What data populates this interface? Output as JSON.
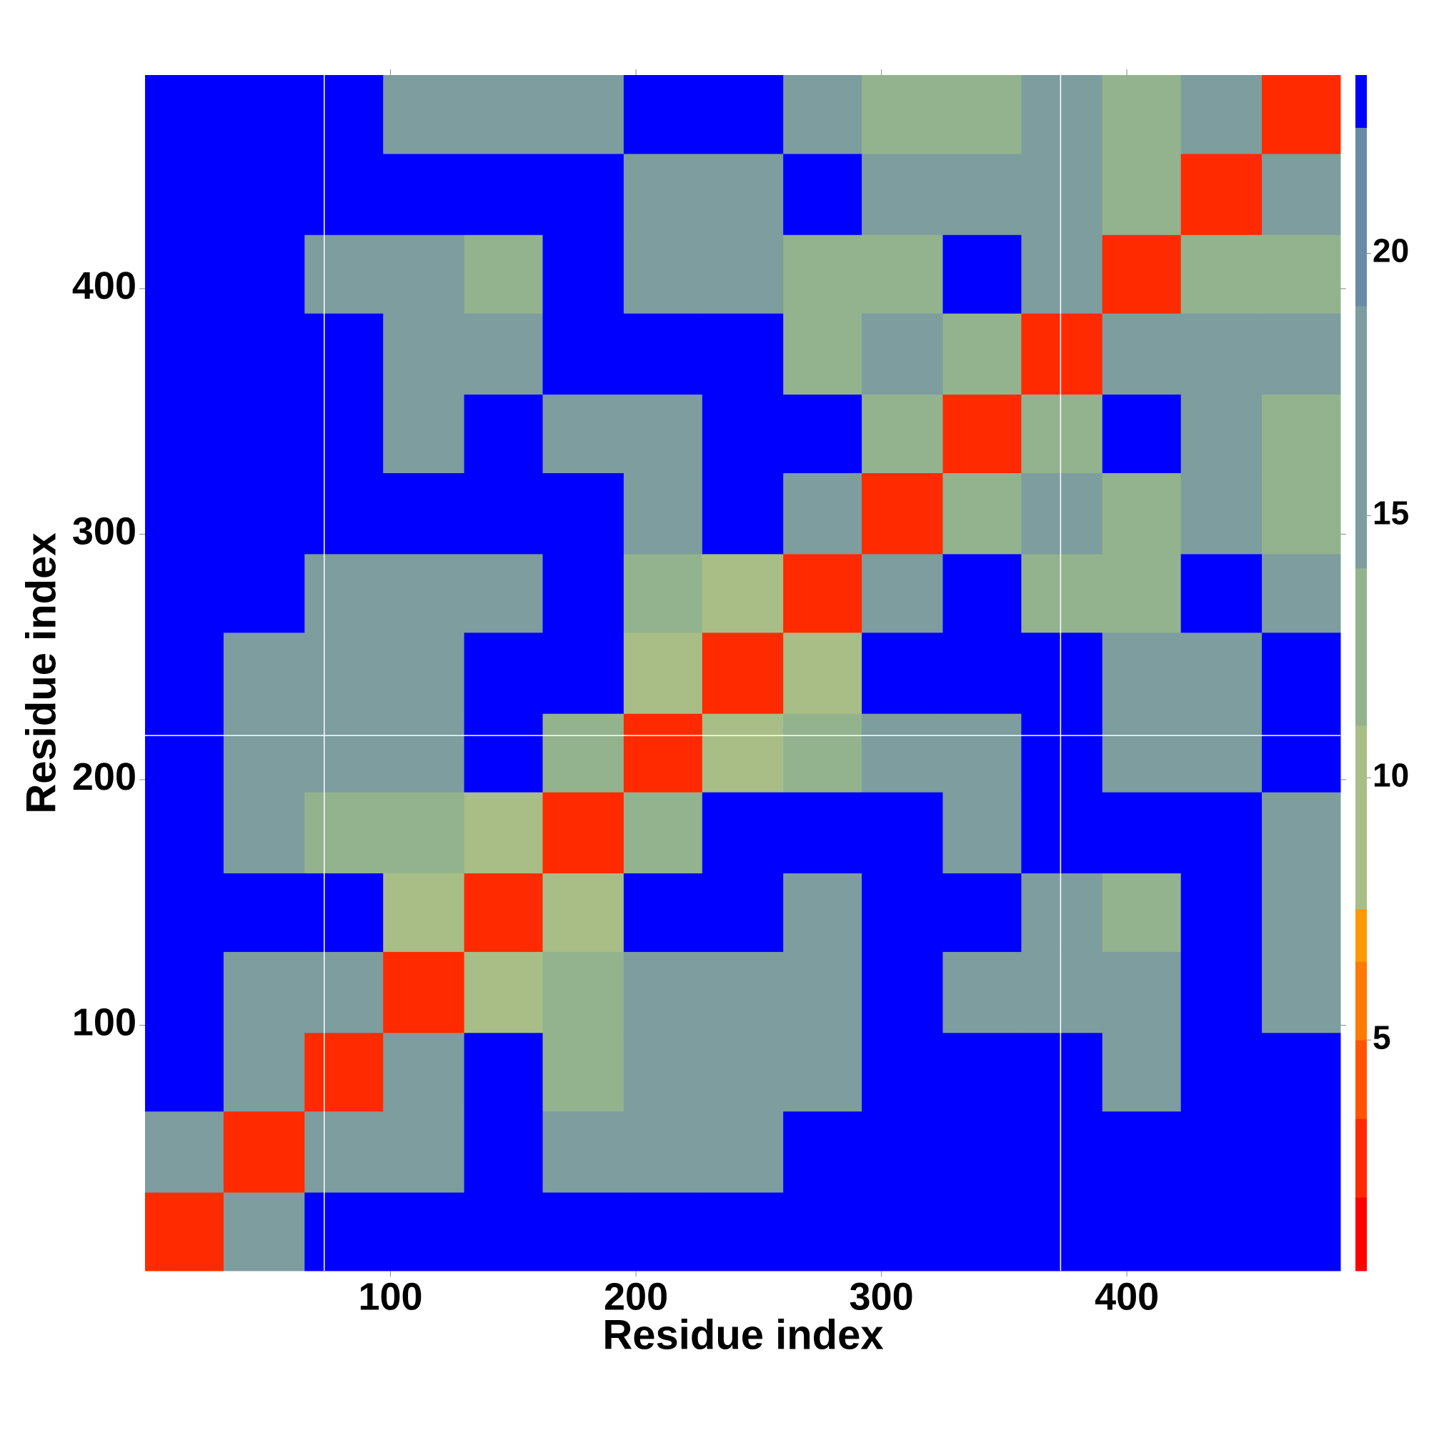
{
  "chart_data": {
    "type": "heatmap",
    "xlabel": "Residue index",
    "ylabel": "Residue index",
    "x": [
      0,
      32,
      65,
      97,
      130,
      162,
      195,
      227,
      260,
      292,
      325,
      357,
      390,
      422,
      455,
      487
    ],
    "y": [
      0,
      32,
      65,
      97,
      130,
      162,
      195,
      227,
      260,
      292,
      325,
      357,
      390,
      422,
      455,
      487
    ],
    "values": [
      [
        2,
        16,
        23,
        23,
        23,
        23,
        23,
        23,
        23,
        23,
        23,
        23,
        23,
        23,
        23
      ],
      [
        16,
        2,
        16,
        14,
        23,
        14,
        15,
        16,
        23,
        23,
        23,
        23,
        23,
        23,
        23
      ],
      [
        23,
        16,
        2,
        14,
        23,
        13,
        15,
        15,
        16,
        23,
        23,
        23,
        18,
        23,
        23
      ],
      [
        23,
        14,
        14,
        2,
        10,
        13,
        17,
        18,
        16,
        23,
        16,
        15,
        14,
        23,
        15
      ],
      [
        23,
        23,
        23,
        10,
        2,
        8,
        23,
        23,
        16,
        23,
        23,
        16,
        13,
        23,
        14
      ],
      [
        23,
        14,
        13,
        13,
        8,
        2,
        12,
        23,
        23,
        23,
        17,
        23,
        23,
        23,
        17
      ],
      [
        23,
        15,
        15,
        17,
        23,
        12,
        2,
        10,
        11,
        18,
        17,
        23,
        14,
        16,
        23
      ],
      [
        23,
        16,
        15,
        18,
        23,
        23,
        10,
        2,
        10,
        23,
        23,
        23,
        14,
        16,
        23
      ],
      [
        23,
        23,
        16,
        16,
        16,
        23,
        11,
        10,
        2,
        14,
        23,
        13,
        12,
        23,
        14
      ],
      [
        23,
        23,
        23,
        23,
        23,
        23,
        18,
        23,
        14,
        2,
        11,
        15,
        13,
        14,
        13
      ],
      [
        23,
        23,
        23,
        16,
        23,
        17,
        17,
        23,
        23,
        11,
        2,
        12,
        23,
        16,
        13
      ],
      [
        23,
        23,
        23,
        15,
        16,
        23,
        23,
        23,
        13,
        15,
        12,
        2,
        14,
        18,
        14
      ],
      [
        23,
        23,
        18,
        14,
        13,
        23,
        14,
        14,
        12,
        13,
        23,
        14,
        2,
        12,
        13
      ],
      [
        23,
        23,
        23,
        23,
        23,
        23,
        16,
        16,
        23,
        14,
        16,
        18,
        12,
        2,
        16
      ],
      [
        23,
        23,
        23,
        15,
        14,
        17,
        23,
        23,
        14,
        13,
        13,
        14,
        13,
        16,
        2
      ]
    ],
    "xlim": [
      0,
      487
    ],
    "ylim": [
      0,
      487
    ],
    "xticks": [
      100,
      200,
      300,
      400
    ],
    "yticks": [
      100,
      200,
      300,
      400
    ],
    "vlines": [
      73,
      373
    ],
    "hlines": [
      218
    ],
    "clim": [
      0.6,
      23.4
    ],
    "cticks": [
      5,
      10,
      15,
      20
    ],
    "colorscale": [
      [
        0.6,
        "#ff0000"
      ],
      [
        2.0,
        "#ff2a00"
      ],
      [
        3.5,
        "#ff5500"
      ],
      [
        5.0,
        "#ff7a00"
      ],
      [
        6.5,
        "#ff9900"
      ],
      [
        7.5,
        "#a8be86"
      ],
      [
        11,
        "#93b38e"
      ],
      [
        14,
        "#7d9d9f"
      ],
      [
        19,
        "#6a8aa8"
      ],
      [
        22.4,
        "#0000ff"
      ]
    ]
  }
}
